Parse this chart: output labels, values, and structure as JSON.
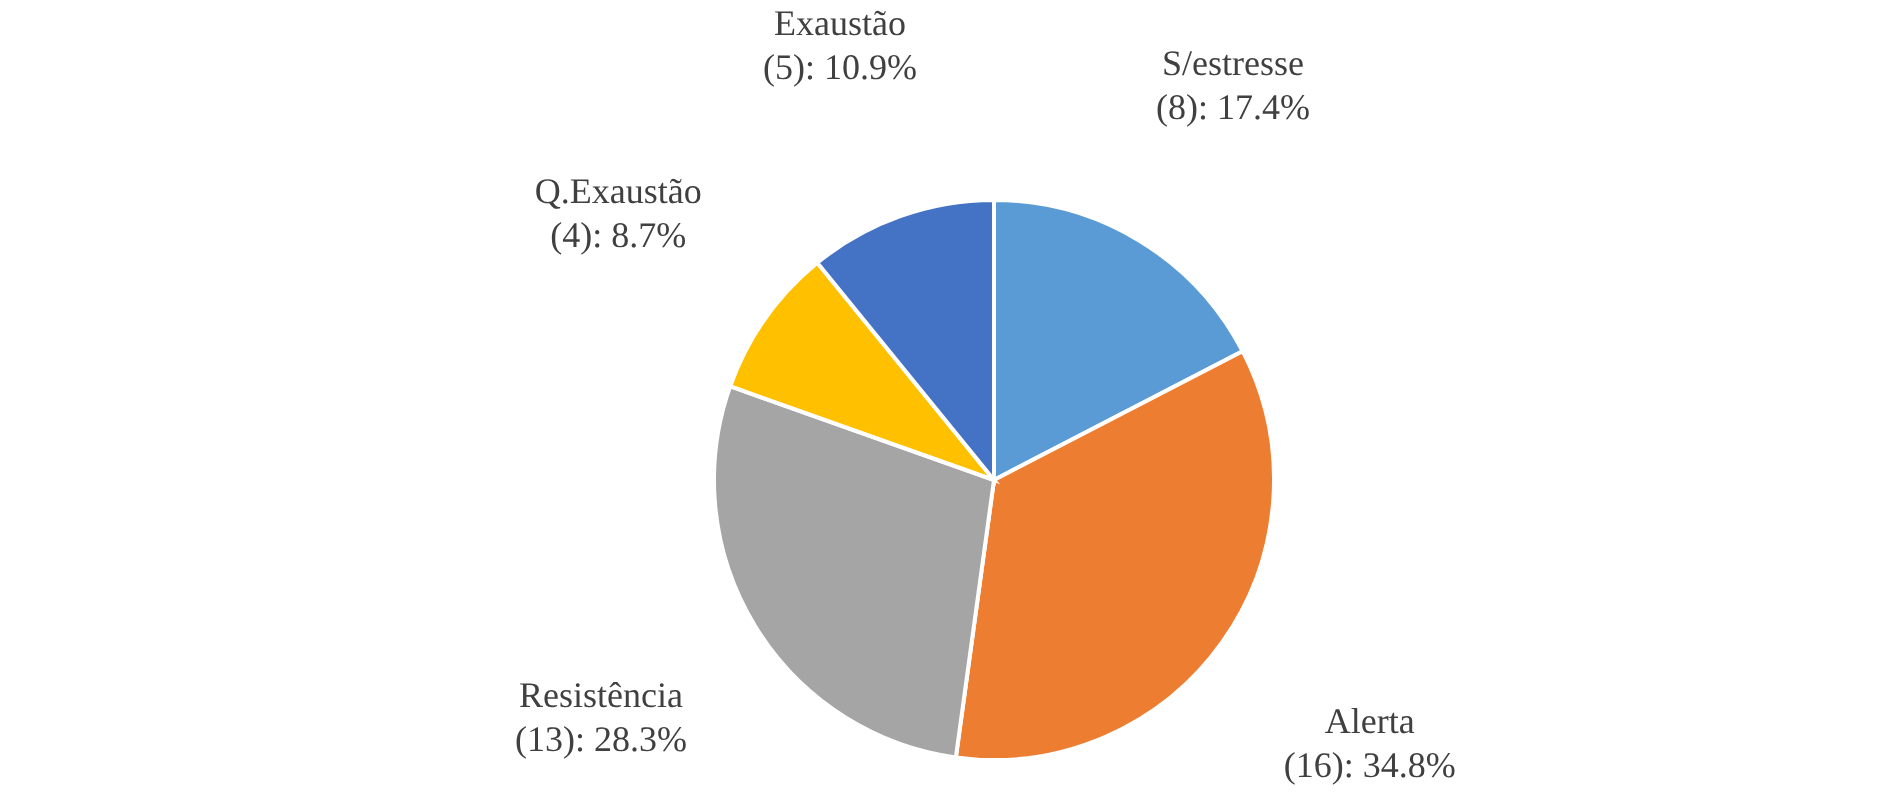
{
  "chart_data": {
    "type": "pie",
    "categories": [
      "S/estresse",
      "Alerta",
      "Resistência",
      "Q.Exaustão",
      "Exaustão"
    ],
    "values": [
      8,
      16,
      13,
      4,
      5
    ],
    "colors": [
      "#5b9bd5",
      "#ed7d31",
      "#a5a5a5",
      "#ffc000",
      "#4472c4"
    ],
    "value_labels": [
      "(8): 17.4%",
      "(16): 34.8%",
      "(13): 28.3%",
      "(4): 8.7%",
      "(5): 10.9%"
    ],
    "legend": false
  }
}
